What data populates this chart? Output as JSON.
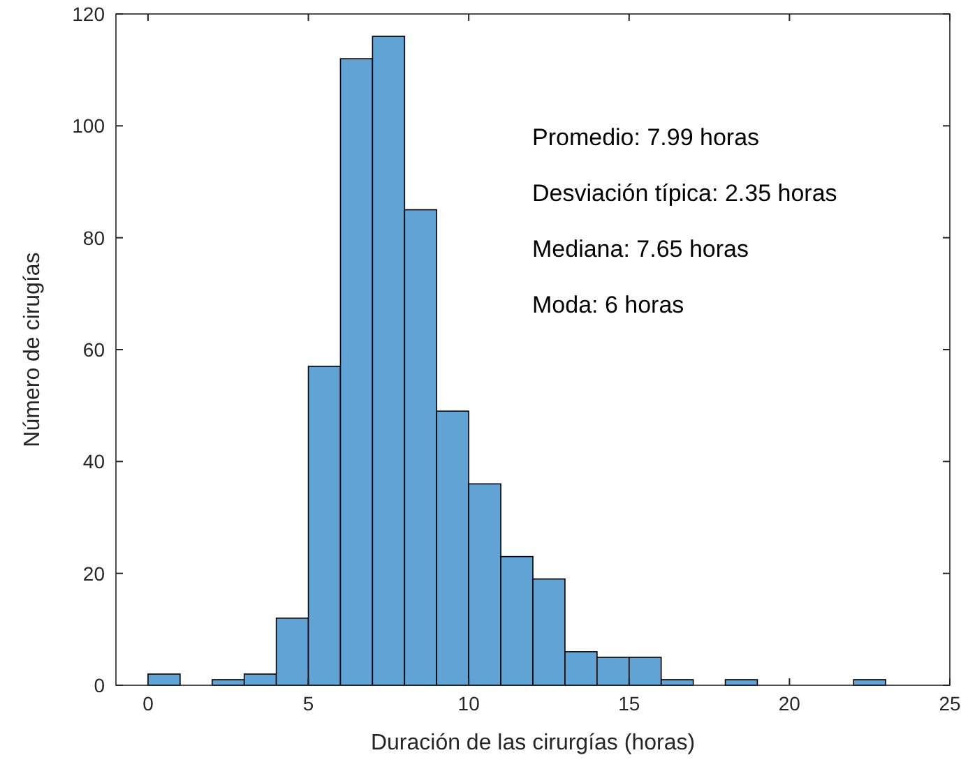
{
  "chart_data": {
    "type": "histogram",
    "xlabel": "Duración de las cirurgías (horas)",
    "ylabel": "Número de cirugías",
    "bins": [
      0,
      1,
      2,
      3,
      4,
      5,
      6,
      7,
      8,
      9,
      10,
      11,
      12,
      13,
      14,
      15,
      16,
      17,
      18,
      19,
      20,
      21,
      22,
      23
    ],
    "values": [
      2,
      0,
      1,
      2,
      12,
      57,
      112,
      116,
      85,
      49,
      36,
      23,
      19,
      6,
      5,
      5,
      1,
      0,
      1,
      0,
      0,
      0,
      1
    ],
    "color": "#62a3d6",
    "xlim": [
      -1,
      25
    ],
    "xticks": [
      0,
      5,
      10,
      15,
      20,
      25
    ],
    "ylim": [
      0,
      120
    ],
    "yticks": [
      0,
      20,
      40,
      60,
      80,
      100,
      120
    ],
    "annotations": [
      "Promedio: 7.99 horas",
      "Desviación típica: 2.35 horas",
      "Mediana: 7.65 horas",
      "Moda: 6 horas"
    ]
  }
}
